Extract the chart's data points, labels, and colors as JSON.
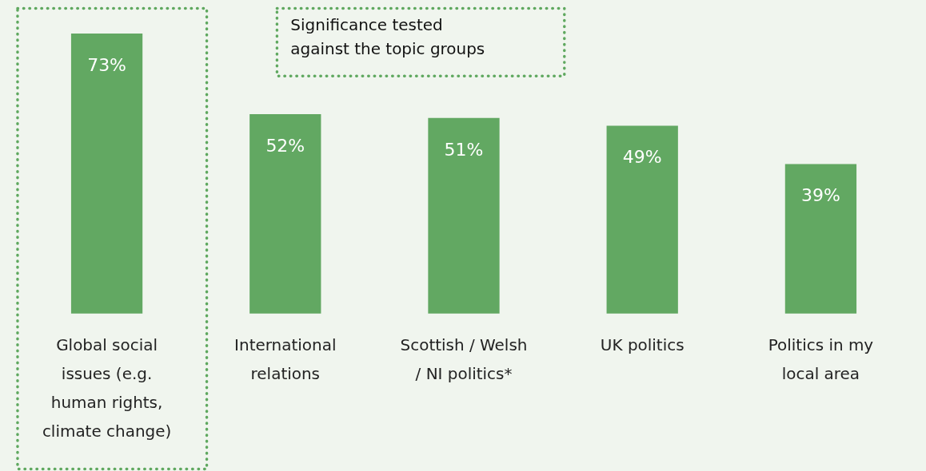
{
  "chart_data": {
    "type": "bar",
    "categories": [
      "Global social issues (e.g. human rights, climate change)",
      "International relations",
      "Scottish / Welsh / NI politics*",
      "UK politics",
      "Politics in my local area"
    ],
    "values": [
      73,
      52,
      51,
      49,
      39
    ],
    "value_labels": [
      "73%",
      "52%",
      "51%",
      "49%",
      "39%"
    ],
    "color": "#62a862",
    "annotations": [
      "Significance tested against the topic groups"
    ],
    "grid": false
  }
}
